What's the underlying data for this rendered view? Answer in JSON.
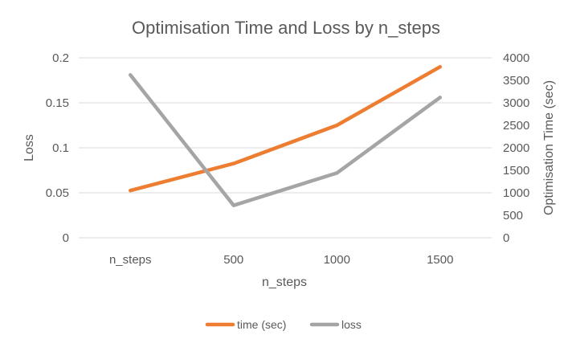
{
  "chart_data": {
    "type": "line",
    "title": "Optimisation Time and Loss by n_steps",
    "xlabel": "n_steps",
    "ylabel_left": "Loss",
    "ylabel_right": "Optimisation Time (sec)",
    "categories": [
      "n_steps",
      "500",
      "1000",
      "1500"
    ],
    "ylim_left": [
      0,
      0.2
    ],
    "ylim_right": [
      0,
      4000
    ],
    "yticks_left": [
      "0",
      "0.05",
      "0.1",
      "0.15",
      "0.2"
    ],
    "yticks_right": [
      "0",
      "500",
      "1000",
      "1500",
      "2000",
      "2500",
      "3000",
      "3500",
      "4000"
    ],
    "grid": true,
    "legend_position": "bottom",
    "series": [
      {
        "name": "time (sec)",
        "axis": "right",
        "color": "#ED7D31",
        "values": [
          1050,
          1650,
          2500,
          3800
        ]
      },
      {
        "name": "loss",
        "axis": "left",
        "color": "#A5A5A5",
        "values": [
          0.181,
          0.036,
          0.072,
          0.156
        ]
      }
    ]
  }
}
